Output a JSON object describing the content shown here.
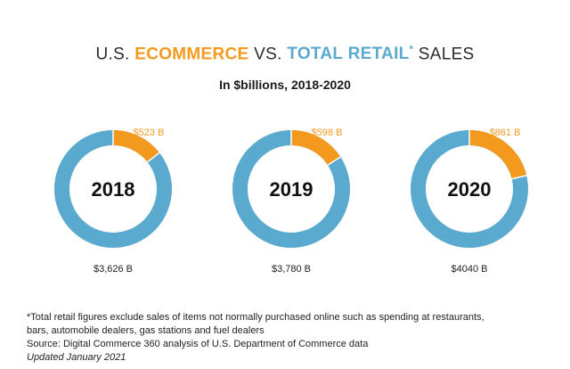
{
  "title": {
    "prefix": "U.S.",
    "ecommerce": "ECOMMERCE",
    "vs": "VS.",
    "total_retail": "TOTAL RETAIL",
    "asterisk": "*",
    "suffix": "SALES"
  },
  "subtitle": "In $billions, 2018-2020",
  "colors": {
    "ecommerce": "#f39a1e",
    "total_retail": "#5aa9cf",
    "text": "#1f1f1f"
  },
  "chart_data": [
    {
      "type": "pie",
      "year": "2018",
      "ecommerce_value": 523,
      "ecommerce_label": "$523 B",
      "total_value": 3626,
      "total_label": "$3,626 B"
    },
    {
      "type": "pie",
      "year": "2019",
      "ecommerce_value": 598,
      "ecommerce_label": "$598 B",
      "total_value": 3780,
      "total_label": "$3,780 B"
    },
    {
      "type": "pie",
      "year": "2020",
      "ecommerce_value": 861,
      "ecommerce_label": "$861 B",
      "total_value": 4040,
      "total_label": "$4040 B"
    }
  ],
  "footnotes": {
    "note_line1": "*Total retail figures exclude sales of items not normally purchased online such as spending at restaurants,",
    "note_line2": "bars, automobile dealers, gas stations and fuel dealers",
    "source": "Source: Digital Commerce 360 analysis of U.S. Department of Commerce data",
    "updated": "Updated January 2021"
  }
}
